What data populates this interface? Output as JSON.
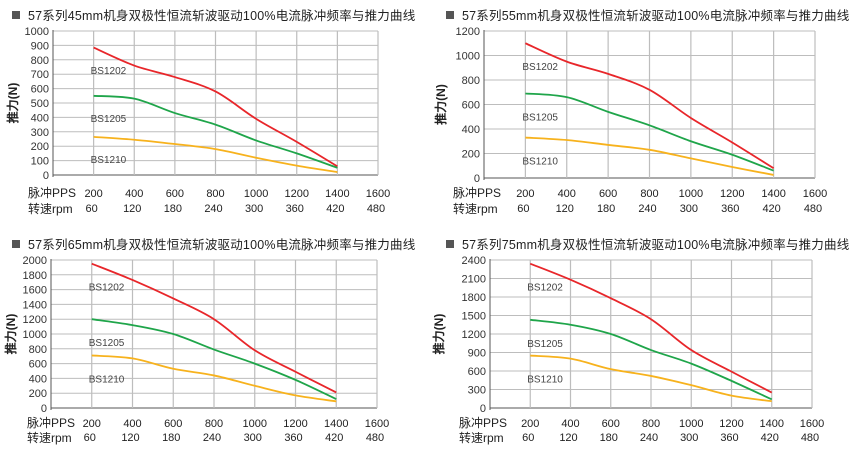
{
  "colors": {
    "BS1202": "#e8262a",
    "BS1205": "#1fa54a",
    "BS1210": "#f7b21d",
    "grid": "#bdbdbd",
    "axis": "#555555"
  },
  "chart_data": [
    {
      "type": "line",
      "title": "57系列45mm机身双极性恒流斩波驱动100%电流脉冲频率与推力曲线",
      "ylabel": "推力(N)",
      "xlabel_rows": [
        "脉冲PPS",
        "转速rpm"
      ],
      "x_ticks": [
        200,
        400,
        600,
        800,
        1000,
        1200,
        1400,
        1600
      ],
      "rpm_ticks": [
        60,
        120,
        180,
        240,
        300,
        360,
        420,
        480
      ],
      "xlim": [
        0,
        1600
      ],
      "ylim": [
        0,
        1000
      ],
      "y_ticks": [
        0,
        100,
        200,
        300,
        400,
        500,
        600,
        700,
        800,
        900,
        1000
      ],
      "grid": true,
      "x": [
        200,
        400,
        600,
        800,
        1000,
        1200,
        1400
      ],
      "series": [
        {
          "name": "BS1202",
          "values": [
            885,
            760,
            680,
            580,
            390,
            230,
            60
          ]
        },
        {
          "name": "BS1205",
          "values": [
            550,
            530,
            430,
            350,
            240,
            150,
            50
          ]
        },
        {
          "name": "BS1210",
          "values": [
            265,
            245,
            215,
            180,
            120,
            65,
            20
          ]
        }
      ]
    },
    {
      "type": "line",
      "title": "57系列55mm机身双极性恒流斩波驱动100%电流脉冲频率与推力曲线",
      "ylabel": "推力(N)",
      "xlabel_rows": [
        "脉冲PPS",
        "转速rpm"
      ],
      "x_ticks": [
        200,
        400,
        600,
        800,
        1000,
        1200,
        1400,
        1600
      ],
      "rpm_ticks": [
        60,
        120,
        180,
        240,
        300,
        360,
        420,
        480
      ],
      "xlim": [
        0,
        1600
      ],
      "ylim": [
        0,
        1200
      ],
      "y_ticks": [
        0,
        200,
        400,
        600,
        800,
        1000,
        1200
      ],
      "grid": true,
      "x": [
        200,
        400,
        600,
        800,
        1000,
        1200,
        1400
      ],
      "series": [
        {
          "name": "BS1202",
          "values": [
            1100,
            950,
            850,
            720,
            490,
            290,
            80
          ]
        },
        {
          "name": "BS1205",
          "values": [
            690,
            660,
            540,
            430,
            300,
            190,
            60
          ]
        },
        {
          "name": "BS1210",
          "values": [
            330,
            310,
            270,
            230,
            160,
            90,
            25
          ]
        }
      ]
    },
    {
      "type": "line",
      "title": "57系列65mm机身双极性恒流斩波驱动100%电流脉冲频率与推力曲线",
      "ylabel": "推力(N)",
      "xlabel_rows": [
        "脉冲PPS",
        "转速rpm"
      ],
      "x_ticks": [
        200,
        400,
        600,
        800,
        1000,
        1200,
        1400,
        1600
      ],
      "rpm_ticks": [
        60,
        120,
        180,
        240,
        300,
        360,
        420,
        480
      ],
      "xlim": [
        0,
        1600
      ],
      "ylim": [
        0,
        2000
      ],
      "y_ticks": [
        0,
        200,
        400,
        600,
        800,
        1000,
        1200,
        1400,
        1600,
        1800,
        2000
      ],
      "grid": true,
      "x": [
        200,
        400,
        600,
        800,
        1000,
        1200,
        1400
      ],
      "series": [
        {
          "name": "BS1202",
          "values": [
            1950,
            1730,
            1480,
            1200,
            780,
            490,
            210
          ]
        },
        {
          "name": "BS1205",
          "values": [
            1200,
            1120,
            1000,
            790,
            600,
            380,
            120
          ]
        },
        {
          "name": "BS1210",
          "values": [
            710,
            670,
            530,
            440,
            300,
            170,
            90
          ]
        }
      ]
    },
    {
      "type": "line",
      "title": "57系列75mm机身双极性恒流斩波驱动100%电流脉冲频率与推力曲线",
      "ylabel": "推力(N)",
      "xlabel_rows": [
        "脉冲PPS",
        "转速rpm"
      ],
      "x_ticks": [
        200,
        400,
        600,
        800,
        1000,
        1200,
        1400,
        1600
      ],
      "rpm_ticks": [
        60,
        120,
        180,
        240,
        300,
        360,
        420,
        480
      ],
      "xlim": [
        0,
        1600
      ],
      "ylim": [
        0,
        2400
      ],
      "y_ticks": [
        0,
        300,
        600,
        900,
        1200,
        1500,
        1800,
        2100,
        2400
      ],
      "grid": true,
      "x": [
        200,
        400,
        600,
        800,
        1000,
        1200,
        1400
      ],
      "series": [
        {
          "name": "BS1202",
          "values": [
            2340,
            2080,
            1780,
            1440,
            940,
            590,
            250
          ]
        },
        {
          "name": "BS1205",
          "values": [
            1430,
            1350,
            1200,
            940,
            720,
            440,
            140
          ]
        },
        {
          "name": "BS1210",
          "values": [
            850,
            800,
            630,
            520,
            370,
            200,
            110
          ]
        }
      ]
    }
  ]
}
